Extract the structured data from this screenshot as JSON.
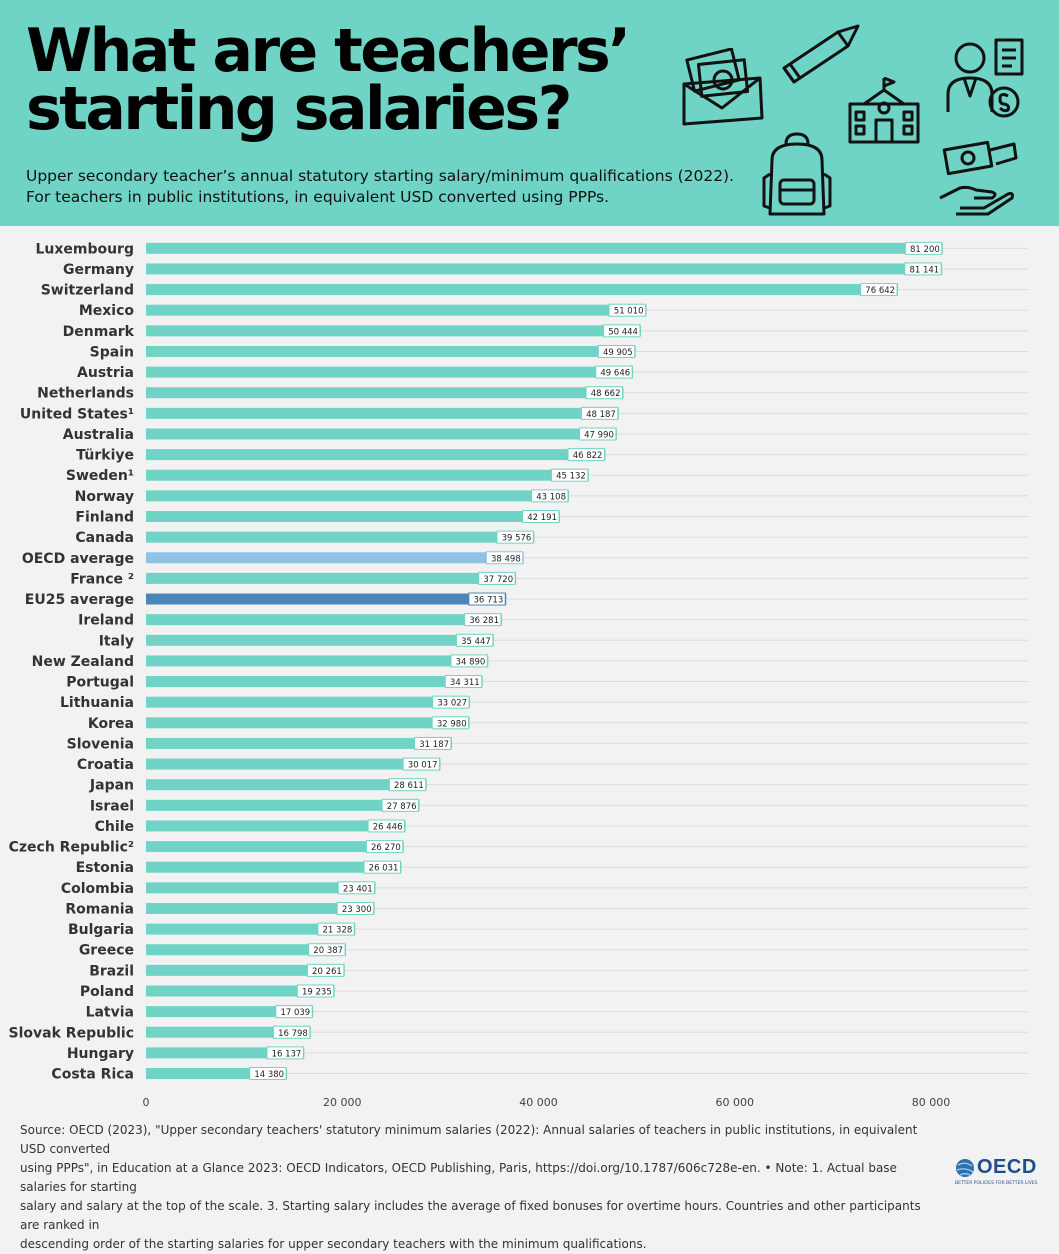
{
  "header": {
    "title_line1": "What are teachers’",
    "title_line2": "starting salaries?",
    "subtitle_line1": "Upper secondary teacher’s annual statutory starting salary/minimum qualifications (2022).",
    "subtitle_line2": "For teachers in public institutions, in equivalent USD converted using PPPs.",
    "background_color": "#6fd4c5",
    "icons": [
      "money-envelope-icon",
      "pencil-icon",
      "school-building-icon",
      "teacher-salary-icon",
      "backpack-icon",
      "hand-receiving-money-icon"
    ]
  },
  "chart_data": {
    "type": "bar",
    "orientation": "horizontal",
    "categories": [
      "Luxembourg",
      "Germany",
      "Switzerland",
      "Mexico",
      "Denmark",
      "Spain",
      "Austria",
      "Netherlands",
      "United States¹",
      "Australia",
      "Türkiye",
      "Sweden¹",
      "Norway",
      "Finland",
      "Canada",
      "OECD average",
      "France ²",
      "EU25 average",
      "Ireland",
      "Italy",
      "New Zealand",
      "Portugal",
      "Lithuania",
      "Korea",
      "Slovenia",
      "Croatia",
      "Japan",
      "Israel",
      "Chile",
      "Czech Republic²",
      "Estonia",
      "Colombia",
      "Romania",
      "Bulgaria",
      "Greece",
      "Brazil",
      "Poland",
      "Latvia",
      "Slovak Republic",
      "Hungary",
      "Costa Rica"
    ],
    "values": [
      81200,
      81141,
      76642,
      51010,
      50444,
      49905,
      49646,
      48662,
      48187,
      47990,
      46822,
      45132,
      43108,
      42191,
      39576,
      38498,
      37720,
      36713,
      36281,
      35447,
      34890,
      34311,
      33027,
      32980,
      31187,
      30017,
      28611,
      27876,
      26446,
      26270,
      26031,
      23401,
      23300,
      21328,
      20387,
      20261,
      19235,
      17039,
      16798,
      16137,
      14380
    ],
    "value_labels": [
      "81 200",
      "81 141",
      "76 642",
      "51 010",
      "50 444",
      "49 905",
      "49 646",
      "48 662",
      "48 187",
      "47 990",
      "46 822",
      "45 132",
      "43 108",
      "42 191",
      "39 576",
      "38 498",
      "37 720",
      "36 713",
      "36 281",
      "35 447",
      "34 890",
      "34 311",
      "33 027",
      "32 980",
      "31 187",
      "30 017",
      "28 611",
      "27 876",
      "26 446",
      "26 270",
      "26 031",
      "23 401",
      "23 300",
      "21 328",
      "20 387",
      "20 261",
      "19 235",
      "17 039",
      "16 798",
      "16 137",
      "14 380"
    ],
    "highlight": {
      "OECD average": "#8ec3e6",
      "EU25 average": "#4a86b8"
    },
    "bar_color": "#6fd4c5",
    "x_ticks": [
      0,
      20000,
      40000,
      60000,
      80000
    ],
    "x_tick_labels": [
      "0",
      "20 000",
      "40 000",
      "60 000",
      "80 000"
    ],
    "xlim": [
      0,
      90000
    ],
    "grid": true,
    "title": "",
    "xlabel": "",
    "ylabel": ""
  },
  "footer": {
    "source_lines": [
      "Source: OECD (2023), \"Upper secondary teachers' statutory minimum salaries (2022): Annual salaries of teachers in public institutions, in equivalent USD converted",
      "using PPPs\", in Education at a Glance 2023: OECD Indicators, OECD Publishing, Paris, https://doi.org/10.1787/606c728e-en. • Note: 1. Actual base salaries for starting",
      "salary and salary at the top of the scale. 3. Starting salary includes the average of fixed bonuses for overtime hours. Countries and other participants are ranked in",
      "descending order of the starting salaries for upper secondary teachers with the minimum qualifications."
    ],
    "logo_text": "OECD",
    "logo_tagline": "BETTER POLICIES FOR BETTER LIVES"
  }
}
